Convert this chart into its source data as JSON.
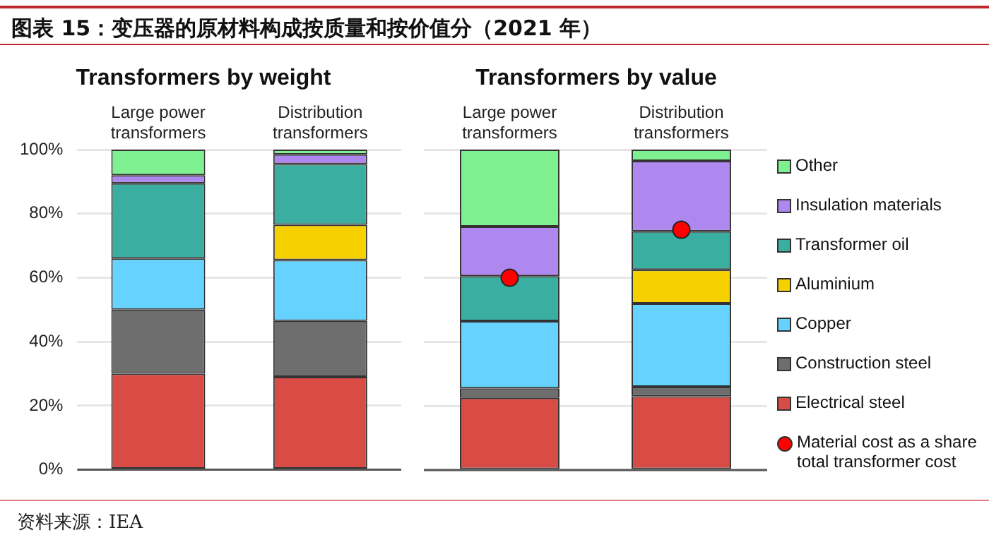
{
  "chart_data": [
    {
      "type": "bar",
      "title": "Transformers by weight",
      "stacked": true,
      "categories": [
        "Large power transformers",
        "Distribution transformers"
      ],
      "ylim": [
        0,
        100
      ],
      "yticks": [
        {
          "value": 0,
          "label": "0%"
        },
        {
          "value": 20,
          "label": "20%"
        },
        {
          "value": 40,
          "label": "40%"
        },
        {
          "value": 60,
          "label": "60%"
        },
        {
          "value": 80,
          "label": "80%"
        },
        {
          "value": 100,
          "label": "100%"
        }
      ],
      "grid": "y",
      "annotations": [
        "图表 15：变压器的原材料构成按质量和按价值分（2021 年）",
        "资料来源：IEA"
      ],
      "series": [
        {
          "color": "#d94b45",
          "values": [
            30,
            29
          ]
        },
        {
          "color": "#6e6e6e",
          "values": [
            20,
            17.5
          ]
        },
        {
          "color": "#66d2ff",
          "values": [
            16,
            19
          ]
        },
        {
          "color": "#f7d000",
          "values": [
            0,
            11
          ]
        },
        {
          "color": "#3aaea0",
          "values": [
            23.5,
            19
          ]
        },
        {
          "color": "#ae87ef",
          "values": [
            2.5,
            3
          ]
        },
        {
          "color": "#7ff08f",
          "values": [
            8,
            1.5
          ]
        }
      ]
    },
    {
      "type": "bar",
      "title": "Transformers by value",
      "stacked": true,
      "categories": [
        "Large power transformers",
        "Distribution transformers"
      ],
      "ylim": [
        0,
        100
      ],
      "yticks": [
        {
          "value": 0,
          "label": null
        },
        {
          "value": 20,
          "label": null
        },
        {
          "value": 40,
          "label": null
        },
        {
          "value": 60,
          "label": null
        },
        {
          "value": 80,
          "label": null
        },
        {
          "value": 100,
          "label": null
        }
      ],
      "grid": "y",
      "tick_labels": "x",
      "legend": "right",
      "series": [
        {
          "name": "Electrical steel",
          "color": "#d94b45",
          "values": [
            22.5,
            23
          ]
        },
        {
          "name": "Construction steel",
          "color": "#6e6e6e",
          "values": [
            3,
            3
          ]
        },
        {
          "name": "Copper",
          "color": "#66d2ff",
          "values": [
            21,
            26
          ]
        },
        {
          "name": "Aluminium",
          "color": "#f7d000",
          "values": [
            0,
            10.5
          ]
        },
        {
          "name": "Transformer oil",
          "color": "#3aaea0",
          "values": [
            14,
            12
          ]
        },
        {
          "name": "Insulation materials",
          "color": "#ae87ef",
          "values": [
            15.5,
            22
          ]
        },
        {
          "name": "Other",
          "color": "#7ff08f",
          "values": [
            24,
            3.5
          ]
        },
        {
          "name": "Material cost as a share total transformer cost",
          "type": "scatter",
          "marker": "circle",
          "color": "#ff0000",
          "x": [
            "Large power transformers",
            "Distribution transformers"
          ],
          "values": [
            60,
            75
          ]
        }
      ]
    }
  ]
}
